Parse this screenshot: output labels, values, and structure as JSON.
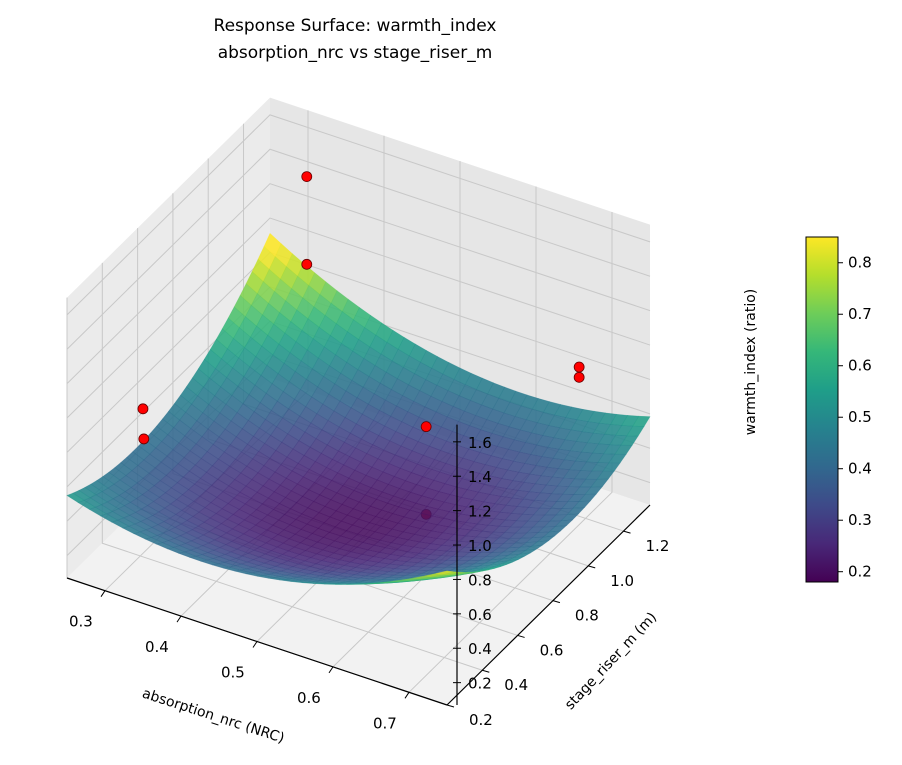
{
  "chart_data": {
    "type": "surface3d",
    "title": "Response Surface: warmth_index",
    "subtitle": "absorption_nrc vs stage_riser_m",
    "xlabel": "absorption_nrc (NRC)",
    "ylabel": "stage_riser_m (m)",
    "zlabel": "warmth_index (ratio)",
    "xlim": [
      0.25,
      0.75
    ],
    "ylim": [
      0.2,
      1.35
    ],
    "zlim": [
      0.07,
      1.7
    ],
    "xticks": [
      "0.3",
      "0.4",
      "0.5",
      "0.6",
      "0.7"
    ],
    "yticks": [
      "0.2",
      "0.4",
      "0.6",
      "0.8",
      "1.0",
      "1.2"
    ],
    "zticks": [
      "0.2",
      "0.4",
      "0.6",
      "0.8",
      "1.0",
      "1.2",
      "1.4",
      "1.6"
    ],
    "surface_model": {
      "z_min": 0.2,
      "x_center": 0.5,
      "y_center": 0.75,
      "a_xx": 4.0,
      "b_yy": 0.826,
      "c_xy": -1.09
    },
    "colormap": "viridis",
    "colorbar": {
      "range": [
        0.18,
        0.85
      ],
      "ticks": [
        "0.2",
        "0.3",
        "0.4",
        "0.5",
        "0.6",
        "0.7",
        "0.8"
      ]
    },
    "points_color": "#ff0000",
    "points": [
      {
        "x": 0.31,
        "y": 1.3,
        "z": 1.38
      },
      {
        "x": 0.31,
        "y": 1.3,
        "z": 0.87
      },
      {
        "x": 0.3,
        "y": 0.415,
        "z": 0.91
      },
      {
        "x": 0.3,
        "y": 0.42,
        "z": 0.73
      },
      {
        "x": 0.68,
        "y": 1.25,
        "z": 0.87
      },
      {
        "x": 0.68,
        "y": 1.25,
        "z": 0.81
      },
      {
        "x": 0.56,
        "y": 0.9,
        "z": 0.7
      },
      {
        "x": 0.56,
        "y": 0.9,
        "z": 0.19
      }
    ]
  }
}
